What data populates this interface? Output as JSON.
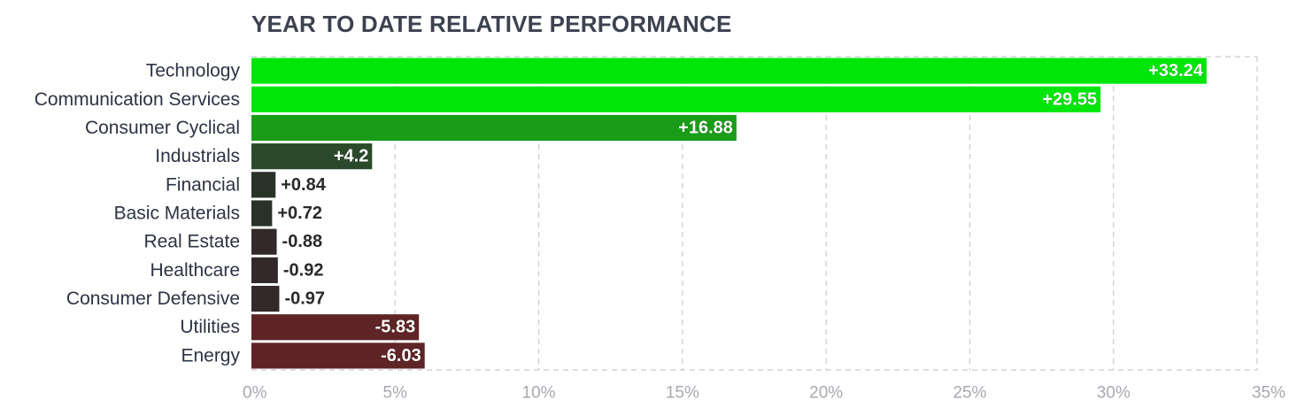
{
  "chart_data": {
    "type": "bar",
    "orientation": "horizontal",
    "title": "YEAR TO DATE RELATIVE PERFORMANCE",
    "xlabel": "",
    "ylabel": "",
    "xlim": [
      0,
      35
    ],
    "grid": true,
    "categories": [
      "Technology",
      "Communication Services",
      "Consumer Cyclical",
      "Industrials",
      "Financial",
      "Basic Materials",
      "Real Estate",
      "Healthcare",
      "Consumer Defensive",
      "Utilities",
      "Energy"
    ],
    "values": [
      33.24,
      29.55,
      16.88,
      4.2,
      0.84,
      0.72,
      -0.88,
      -0.92,
      -0.97,
      -5.83,
      -6.03
    ],
    "value_labels": [
      "+33.24",
      "+29.55",
      "+16.88",
      "+4.2",
      "+0.84",
      "+0.72",
      "-0.88",
      "-0.92",
      "-0.97",
      "-5.83",
      "-6.03"
    ],
    "bar_colors": [
      "#00e60b",
      "#00e60b",
      "#1a9c18",
      "#2b4a2b",
      "#2a3328",
      "#2a3328",
      "#322a2a",
      "#322a2a",
      "#322a2a",
      "#5e2426",
      "#5e2426"
    ],
    "x_ticks": [
      0,
      5,
      10,
      15,
      20,
      25,
      30,
      35
    ],
    "x_tick_labels": [
      "0%",
      "5%",
      "10%",
      "15%",
      "20%",
      "25%",
      "30%",
      "35%"
    ]
  }
}
